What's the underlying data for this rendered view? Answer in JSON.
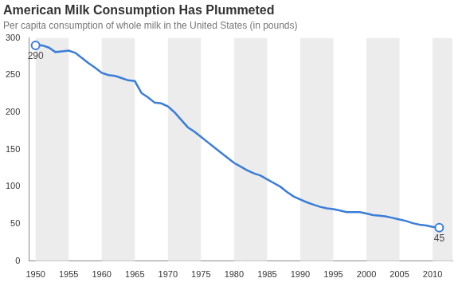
{
  "chart_data": {
    "type": "line",
    "title": "American Milk Consumption Has Plummeted",
    "subtitle": "Per capita consumption of whole milk in the United States (in pounds)",
    "x": [
      1950,
      1951,
      1952,
      1953,
      1954,
      1955,
      1956,
      1957,
      1958,
      1959,
      1960,
      1961,
      1962,
      1963,
      1964,
      1965,
      1966,
      1967,
      1968,
      1969,
      1970,
      1971,
      1972,
      1973,
      1974,
      1975,
      1976,
      1977,
      1978,
      1979,
      1980,
      1981,
      1982,
      1983,
      1984,
      1985,
      1986,
      1987,
      1988,
      1989,
      1990,
      1991,
      1992,
      1993,
      1994,
      1995,
      1996,
      1997,
      1998,
      1999,
      2000,
      2001,
      2002,
      2003,
      2004,
      2005,
      2006,
      2007,
      2008,
      2009,
      2010,
      2011
    ],
    "values": [
      290,
      290,
      287,
      281,
      282,
      283,
      280,
      273,
      266,
      260,
      253,
      250,
      249,
      246,
      243,
      242,
      226,
      220,
      213,
      212,
      208,
      200,
      190,
      180,
      174,
      167,
      160,
      153,
      146,
      139,
      132,
      127,
      122,
      118,
      115,
      110,
      105,
      100,
      93,
      87,
      83,
      79,
      76,
      73,
      71,
      70,
      68,
      66,
      66,
      66,
      64,
      62,
      61,
      60,
      58,
      56,
      54,
      51,
      49,
      48,
      46,
      45
    ],
    "color": "#3b7dd8",
    "marker": "circle",
    "annotations": [
      {
        "x": 1950,
        "y": 290,
        "text": "290"
      },
      {
        "x": 2011,
        "y": 45,
        "text": "45"
      }
    ],
    "xlim": [
      1949,
      2013
    ],
    "xticks": [
      1950,
      1955,
      1960,
      1965,
      1970,
      1975,
      1980,
      1985,
      1990,
      1995,
      2000,
      2005,
      2010
    ],
    "ylim": [
      0,
      300
    ],
    "yticks": [
      0,
      50,
      100,
      150,
      200,
      250,
      300
    ],
    "grid": false
  }
}
